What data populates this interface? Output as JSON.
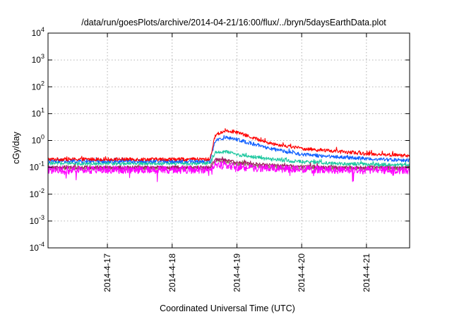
{
  "chart_data": {
    "type": "line",
    "title": "/data/run/goesPlots/archive/2014-04-21/16:00/flux/../bryn/5daysEarthData.plot",
    "xlabel": "Coordinated Universal Time (UTC)",
    "ylabel": "cGy/day",
    "y_scale": "log",
    "ylim": [
      0.0001,
      10000
    ],
    "y_ticks": [
      {
        "value": 0.0001,
        "base": "10",
        "exp": "-4"
      },
      {
        "value": 0.001,
        "base": "10",
        "exp": "-3"
      },
      {
        "value": 0.01,
        "base": "10",
        "exp": "-2"
      },
      {
        "value": 0.1,
        "base": "10",
        "exp": "-1"
      },
      {
        "value": 1,
        "base": "10",
        "exp": "0"
      },
      {
        "value": 10,
        "base": "10",
        "exp": "1"
      },
      {
        "value": 100,
        "base": "10",
        "exp": "2"
      },
      {
        "value": 1000,
        "base": "10",
        "exp": "3"
      },
      {
        "value": 10000,
        "base": "10",
        "exp": "4"
      }
    ],
    "x_ticks": [
      "2014-4-17",
      "2014-4-18",
      "2014-4-19",
      "2014-4-20",
      "2014-4-21"
    ],
    "xlim": [
      "2014-04-16T02:00",
      "2014-04-21T16:00"
    ],
    "grid": true,
    "legend": "none",
    "series": [
      {
        "color": "#ff0000",
        "x": [
          "2014-04-16T02:00",
          "2014-04-17T00:00",
          "2014-04-18T00:00",
          "2014-04-18T14:00",
          "2014-04-18T16:00",
          "2014-04-18T20:00",
          "2014-04-19T00:00",
          "2014-04-19T12:00",
          "2014-04-20T00:00",
          "2014-04-20T12:00",
          "2014-04-21T00:00",
          "2014-04-21T16:00"
        ],
        "y": [
          0.2,
          0.2,
          0.2,
          0.2,
          1.6,
          2.4,
          2.0,
          0.8,
          0.5,
          0.4,
          0.32,
          0.27
        ]
      },
      {
        "color": "#1060ff",
        "x": [
          "2014-04-16T02:00",
          "2014-04-17T00:00",
          "2014-04-18T00:00",
          "2014-04-18T14:00",
          "2014-04-18T16:00",
          "2014-04-18T20:00",
          "2014-04-19T00:00",
          "2014-04-19T12:00",
          "2014-04-20T00:00",
          "2014-04-20T12:00",
          "2014-04-21T00:00",
          "2014-04-21T16:00"
        ],
        "y": [
          0.17,
          0.17,
          0.17,
          0.17,
          1.0,
          1.3,
          1.1,
          0.5,
          0.3,
          0.25,
          0.21,
          0.18
        ]
      },
      {
        "color": "#20c8a0",
        "x": [
          "2014-04-16T02:00",
          "2014-04-17T00:00",
          "2014-04-18T00:00",
          "2014-04-18T14:00",
          "2014-04-18T16:00",
          "2014-04-18T20:00",
          "2014-04-19T00:00",
          "2014-04-19T12:00",
          "2014-04-20T00:00",
          "2014-04-20T12:00",
          "2014-04-21T00:00",
          "2014-04-21T16:00"
        ],
        "y": [
          0.14,
          0.14,
          0.14,
          0.14,
          0.35,
          0.38,
          0.3,
          0.2,
          0.16,
          0.14,
          0.13,
          0.12
        ]
      },
      {
        "color": "#a02060",
        "x": [
          "2014-04-16T02:00",
          "2014-04-17T00:00",
          "2014-04-18T00:00",
          "2014-04-18T14:00",
          "2014-04-18T16:00",
          "2014-04-18T20:00",
          "2014-04-19T00:00",
          "2014-04-19T12:00",
          "2014-04-20T00:00",
          "2014-04-20T12:00",
          "2014-04-21T00:00",
          "2014-04-21T16:00"
        ],
        "y": [
          0.1,
          0.1,
          0.1,
          0.1,
          0.2,
          0.18,
          0.15,
          0.12,
          0.11,
          0.1,
          0.1,
          0.1
        ]
      },
      {
        "color": "#8a8a5a",
        "x": [
          "2014-04-16T02:00",
          "2014-04-17T00:00",
          "2014-04-18T00:00",
          "2014-04-18T14:00",
          "2014-04-18T16:00",
          "2014-04-18T20:00",
          "2014-04-19T00:00",
          "2014-04-19T12:00",
          "2014-04-20T00:00",
          "2014-04-20T12:00",
          "2014-04-21T00:00",
          "2014-04-21T16:00"
        ],
        "y": [
          0.09,
          0.09,
          0.09,
          0.09,
          0.17,
          0.16,
          0.13,
          0.1,
          0.09,
          0.09,
          0.09,
          0.09
        ]
      },
      {
        "color": "#ff00ff",
        "x": [
          "2014-04-16T02:00",
          "2014-04-17T00:00",
          "2014-04-18T00:00",
          "2014-04-18T14:00",
          "2014-04-18T16:00",
          "2014-04-18T20:00",
          "2014-04-19T00:00",
          "2014-04-19T12:00",
          "2014-04-20T00:00",
          "2014-04-20T12:00",
          "2014-04-21T00:00",
          "2014-04-21T16:00"
        ],
        "y": [
          0.08,
          0.08,
          0.08,
          0.08,
          0.13,
          0.12,
          0.1,
          0.09,
          0.085,
          0.08,
          0.08,
          0.078
        ]
      }
    ]
  }
}
